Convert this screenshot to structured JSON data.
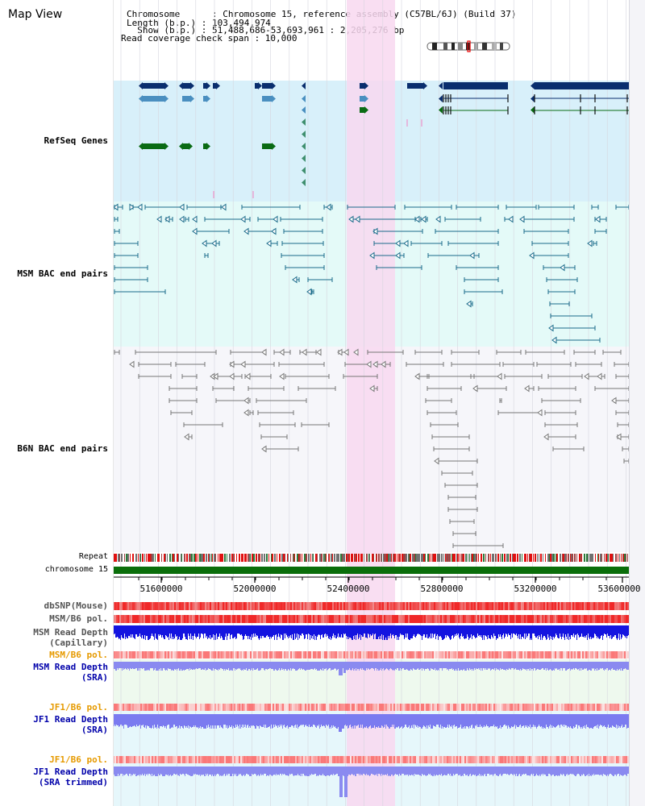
{
  "header": {
    "title": "Map View",
    "lines": [
      "Chromosome      : Chromosome 15, reference assembly (C57BL/6J) (Build 37)",
      "Length (b.p.) : 103,494,974",
      "  Show (b.p.) : 51,488,686-53,693,961 : 2,205,276 bp",
      "Read coverage check span : 10,000"
    ]
  },
  "tracks": {
    "refseq": "RefSeq Genes",
    "msm_bac": "MSM BAC end pairs",
    "b6n_bac": "B6N BAC end pairs",
    "repeat": "Repeat",
    "chromosome": "chromosome 15"
  },
  "axis_ticks": [
    "51600000",
    "52000000",
    "52400000",
    "52800000",
    "53200000",
    "53600000"
  ],
  "bottom_tracks": [
    {
      "label": "dbSNP(Mouse)",
      "color": "#555555"
    },
    {
      "label": "MSM/B6 pol.",
      "color": "#555555"
    },
    {
      "label": "MSM Read Depth",
      "color": "#555555"
    },
    {
      "label": "(Capillary)",
      "color": "#555555"
    },
    {
      "label": "MSM/B6 pol.",
      "color": "#e69a00"
    },
    {
      "label": "MSM Read Depth",
      "color": "#0000aa"
    },
    {
      "label": "(SRA)",
      "color": "#0000aa"
    },
    {
      "label": "JF1/B6 pol.",
      "color": "#e69a00"
    },
    {
      "label": "JF1 Read Depth",
      "color": "#0000aa"
    },
    {
      "label": "(SRA)",
      "color": "#0000aa"
    },
    {
      "label": "JF1/B6 pol.",
      "color": "#e69a00"
    },
    {
      "label": "JF1 Read Depth",
      "color": "#0000aa"
    },
    {
      "label": "(SRA trimmed)",
      "color": "#0000aa"
    }
  ],
  "colors": {
    "highlight": "#f8d8f0",
    "refseq_bg": "#d8f0fa",
    "msm_bg": "#e4faf8",
    "b6n_bg": "#f6f6fa",
    "refseq_label": "#0000aa",
    "msm_label": "#006b80",
    "b6n_label": "#505070",
    "gene_dark": "#0a2e6e",
    "gene_light": "#4a8fc0",
    "gene_green": "#0a6b14",
    "msm_pair": "#1a6b8a",
    "b6n_pair": "#777777",
    "chrom_bar": "#0a6e0a"
  }
}
